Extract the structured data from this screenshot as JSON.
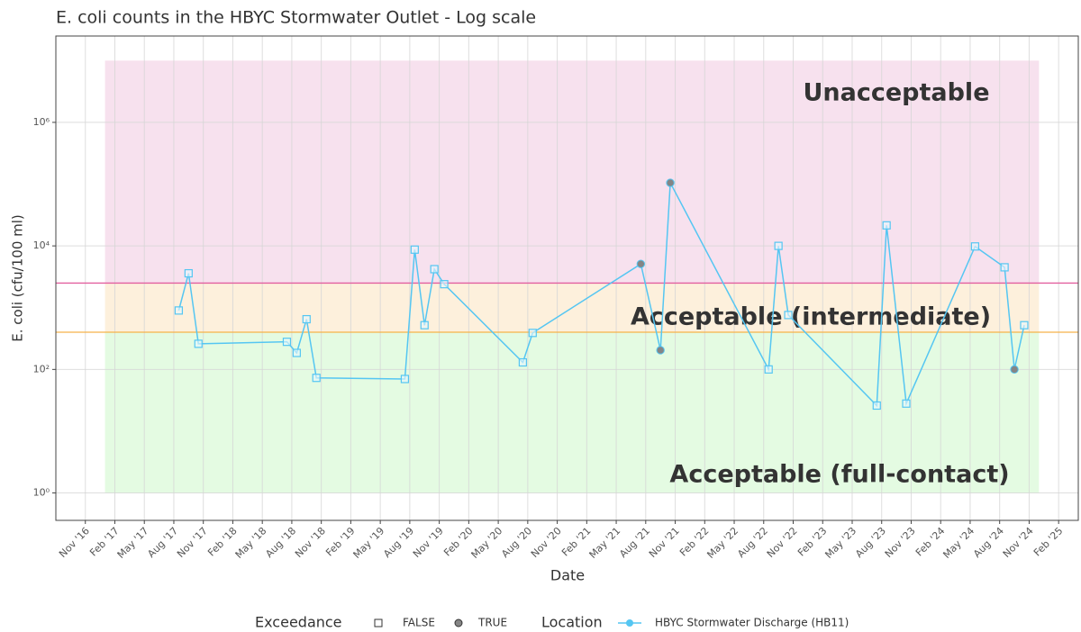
{
  "chart_data": {
    "type": "line",
    "title": "E. coli counts in the HBYC Stormwater Outlet - Log scale",
    "x_label": "Date",
    "y_label": "E. coli (cfu/100 ml)",
    "log_y": true,
    "grid": true,
    "legend_position": "bottom",
    "xlim": [
      "2016-08",
      "2025-04"
    ],
    "ylim": [
      0.36,
      25000000
    ],
    "yticks": [
      {
        "value": 1,
        "label": "10⁰"
      },
      {
        "value": 100,
        "label": "10²"
      },
      {
        "value": 10000,
        "label": "10⁴"
      },
      {
        "value": 1000000,
        "label": "10⁶"
      }
    ],
    "xticks": [
      {
        "value": "2016-11",
        "label": "Nov '16"
      },
      {
        "value": "2017-02",
        "label": "Feb '17"
      },
      {
        "value": "2017-05",
        "label": "May '17"
      },
      {
        "value": "2017-08",
        "label": "Aug '17"
      },
      {
        "value": "2017-11",
        "label": "Nov '17"
      },
      {
        "value": "2018-02",
        "label": "Feb '18"
      },
      {
        "value": "2018-05",
        "label": "May '18"
      },
      {
        "value": "2018-08",
        "label": "Aug '18"
      },
      {
        "value": "2018-11",
        "label": "Nov '18"
      },
      {
        "value": "2019-02",
        "label": "Feb '19"
      },
      {
        "value": "2019-05",
        "label": "May '19"
      },
      {
        "value": "2019-08",
        "label": "Aug '19"
      },
      {
        "value": "2019-11",
        "label": "Nov '19"
      },
      {
        "value": "2020-02",
        "label": "Feb '20"
      },
      {
        "value": "2020-05",
        "label": "May '20"
      },
      {
        "value": "2020-08",
        "label": "Aug '20"
      },
      {
        "value": "2020-11",
        "label": "Nov '20"
      },
      {
        "value": "2021-02",
        "label": "Feb '21"
      },
      {
        "value": "2021-05",
        "label": "May '21"
      },
      {
        "value": "2021-08",
        "label": "Aug '21"
      },
      {
        "value": "2021-11",
        "label": "Nov '21"
      },
      {
        "value": "2022-02",
        "label": "Feb '22"
      },
      {
        "value": "2022-05",
        "label": "May '22"
      },
      {
        "value": "2022-08",
        "label": "Aug '22"
      },
      {
        "value": "2022-11",
        "label": "Nov '22"
      },
      {
        "value": "2023-02",
        "label": "Feb '23"
      },
      {
        "value": "2023-05",
        "label": "May '23"
      },
      {
        "value": "2023-08",
        "label": "Aug '23"
      },
      {
        "value": "2023-11",
        "label": "Nov '23"
      },
      {
        "value": "2024-02",
        "label": "Feb '24"
      },
      {
        "value": "2024-05",
        "label": "May '24"
      },
      {
        "value": "2024-08",
        "label": "Aug '24"
      },
      {
        "value": "2024-11",
        "label": "Nov '24"
      },
      {
        "value": "2025-02",
        "label": "Feb '25"
      }
    ],
    "bands": [
      {
        "label": "Acceptable (full-contact)",
        "range": [
          1,
          400
        ],
        "color": "#e4fbe2",
        "label_color": "#5b6500"
      },
      {
        "label": "Acceptable (intermediate)",
        "range": [
          400,
          2500
        ],
        "color": "#fdf0dc",
        "label_color": "#5b6500"
      },
      {
        "label": "Unacceptable",
        "range": [
          2500,
          10000000
        ],
        "color": "#f7e1ee",
        "label_color": "#a01f3e"
      }
    ],
    "band_x": [
      "2017-01",
      "2024-12"
    ],
    "thresholds": [
      {
        "value": 400,
        "color": "#f5b24a"
      },
      {
        "value": 2500,
        "color": "#e2609f"
      }
    ],
    "x": [
      "2017-08",
      "2017-09",
      "2017-10",
      "2018-07",
      "2018-08",
      "2018-09",
      "2018-10",
      "2019-07",
      "2019-08",
      "2019-09",
      "2019-10",
      "2019-11",
      "2020-07",
      "2020-08",
      "2021-07",
      "2021-09",
      "2021-10",
      "2022-08",
      "2022-09",
      "2022-10",
      "2023-07",
      "2023-08",
      "2023-10",
      "2024-05",
      "2024-08",
      "2024-09",
      "2024-10"
    ],
    "series": [
      {
        "name": "HBYC Stormwater Discharge (HB11)",
        "color": "#55c6f2",
        "values": [
          900,
          3600,
          260,
          280,
          185,
          650,
          73,
          70,
          8700,
          520,
          4200,
          2400,
          130,
          390,
          5100,
          205,
          105000,
          100,
          10000,
          760,
          26,
          21500,
          28,
          9800,
          4500,
          100,
          520
        ],
        "exceedance": [
          false,
          false,
          false,
          false,
          false,
          false,
          false,
          false,
          false,
          false,
          false,
          false,
          false,
          false,
          true,
          true,
          true,
          false,
          false,
          false,
          false,
          false,
          false,
          false,
          false,
          true,
          false
        ]
      }
    ],
    "legend": {
      "exceedance_title": "Exceedance",
      "exceedance_levels": [
        "FALSE",
        "TRUE"
      ],
      "location_title": "Location"
    }
  }
}
